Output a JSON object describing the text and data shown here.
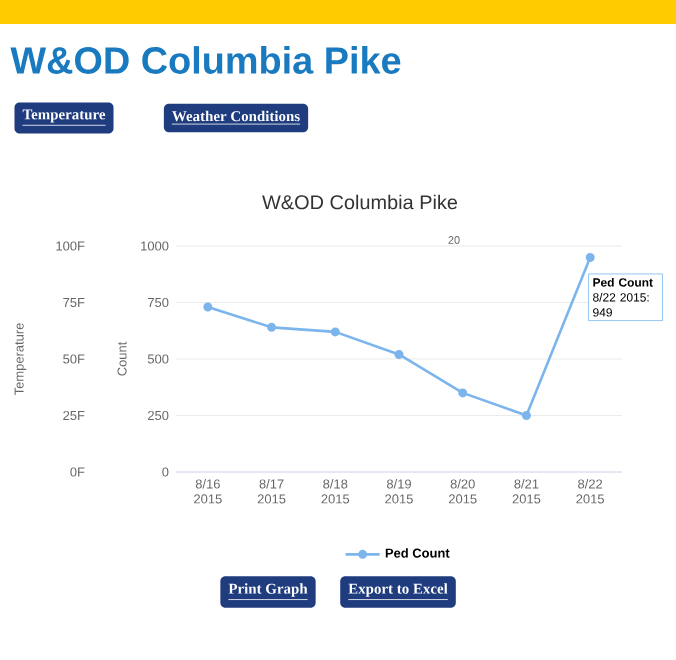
{
  "chart_data": {
    "type": "line",
    "title": "W&OD Columbia Pike",
    "categories": [
      "8/16 2015",
      "8/17 2015",
      "8/18 2015",
      "8/19 2015",
      "8/20 2015",
      "8/21 2015",
      "8/22 2015"
    ],
    "series": [
      {
        "name": "Ped Count",
        "color": "#7cb5ec",
        "values": [
          730,
          640,
          620,
          520,
          350,
          250,
          949
        ]
      }
    ],
    "ylabel": "Count",
    "ylim": [
      0,
      1000
    ],
    "yticks": [
      0,
      250,
      500,
      750,
      1000
    ],
    "y2label": "Temperature",
    "y2lim": [
      0,
      100
    ],
    "y2ticks": [
      {
        "value": 0,
        "label": "0F"
      },
      {
        "value": 25,
        "label": "25F"
      },
      {
        "value": 50,
        "label": "50F"
      },
      {
        "value": 75,
        "label": "75F"
      },
      {
        "value": 100,
        "label": "100F"
      }
    ],
    "grid": "y",
    "legend": "bottom",
    "marker": "circle",
    "line_style": "solid",
    "annotations": [
      "W&OD Columbia Pike",
      "Temperature",
      "Weather Conditions",
      "20",
      {
        "text": "**Ped Count** 8/22 2015: 949",
        "x": "8/22 2015",
        "y": 949
      },
      "Print Graph",
      "Export to Excel"
    ]
  }
}
